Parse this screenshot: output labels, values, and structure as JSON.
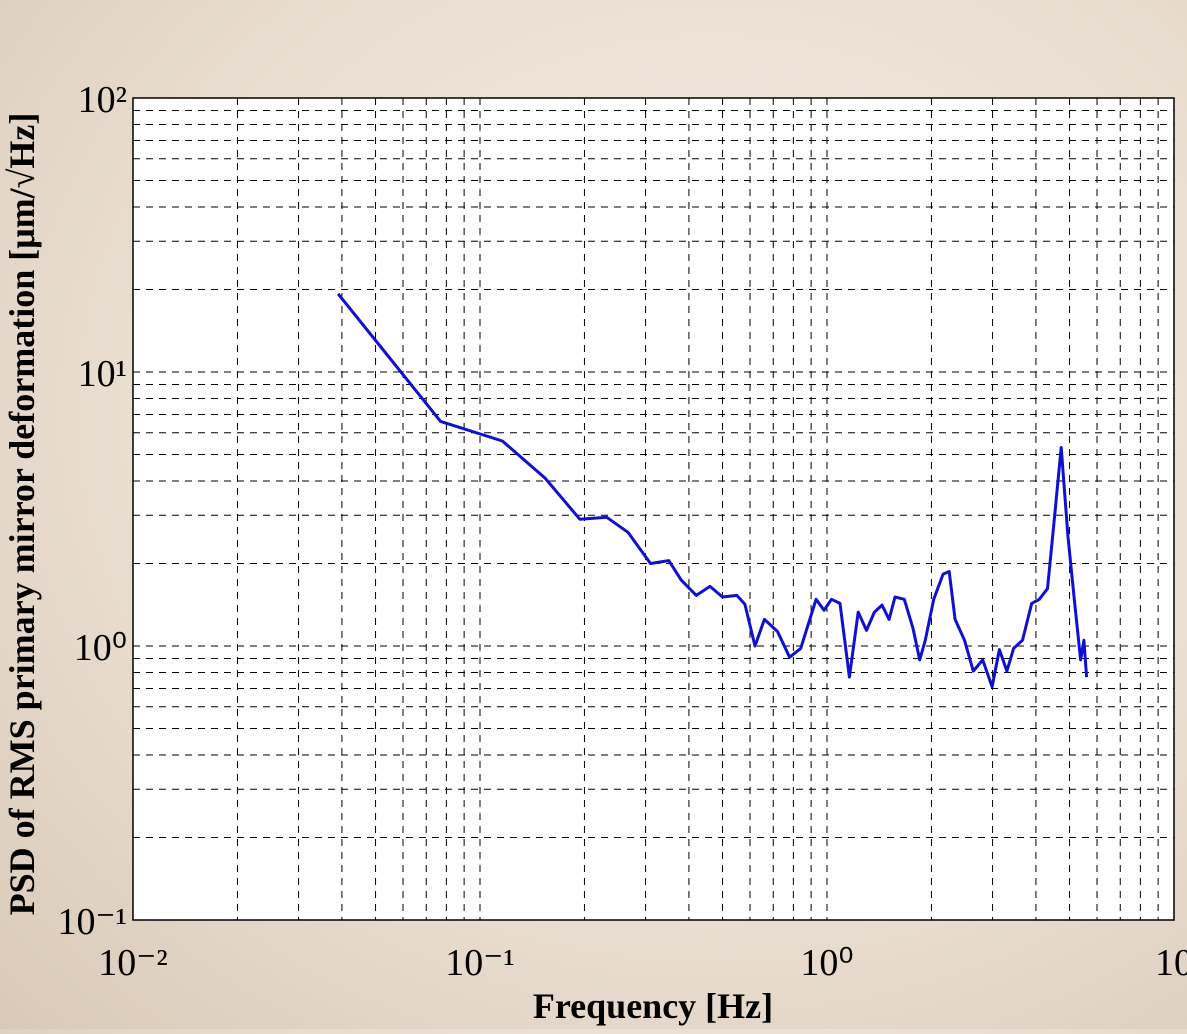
{
  "chart_data": {
    "type": "line",
    "xlabel": "Frequency [Hz]",
    "ylabel": "PSD of RMS primary mirror deformation [μm/√Hz]",
    "xscale": "log",
    "yscale": "log",
    "grid": true,
    "xlim": [
      0.01,
      10
    ],
    "ylim": [
      0.1,
      100
    ],
    "xticks": [
      {
        "value": 0.01,
        "label": "10⁻²"
      },
      {
        "value": 0.1,
        "label": "10⁻¹"
      },
      {
        "value": 1,
        "label": "10⁰"
      },
      10
    ],
    "yticks": [
      {
        "value": 0.1,
        "label": "10⁻¹"
      },
      {
        "value": 1,
        "label": "10⁰"
      },
      {
        "value": 10,
        "label": "10¹"
      },
      {
        "value": 100,
        "label": "10²"
      }
    ],
    "series": [
      {
        "color": "#1010d0",
        "x": [
          0.039,
          0.077,
          0.116,
          0.154,
          0.194,
          0.232,
          0.267,
          0.31,
          0.35,
          0.38,
          0.42,
          0.46,
          0.5,
          0.55,
          0.58,
          0.62,
          0.66,
          0.72,
          0.78,
          0.84,
          0.93,
          0.98,
          1.03,
          1.09,
          1.16,
          1.23,
          1.3,
          1.37,
          1.44,
          1.51,
          1.57,
          1.67,
          1.77,
          1.85,
          1.92,
          2.03,
          2.16,
          2.25,
          2.34,
          2.49,
          2.64,
          2.81,
          2.99,
          3.14,
          3.3,
          3.45,
          3.66,
          3.89,
          4.09,
          4.32,
          4.52,
          4.73,
          4.95,
          5.16,
          5.38,
          5.5,
          5.6
        ],
        "values": [
          19.3,
          6.6,
          5.6,
          4.1,
          2.9,
          2.95,
          2.6,
          2.0,
          2.05,
          1.74,
          1.53,
          1.65,
          1.51,
          1.53,
          1.42,
          1.0,
          1.25,
          1.13,
          0.91,
          0.98,
          1.48,
          1.35,
          1.48,
          1.43,
          0.77,
          1.33,
          1.14,
          1.33,
          1.41,
          1.25,
          1.51,
          1.48,
          1.16,
          0.89,
          1.05,
          1.48,
          1.83,
          1.87,
          1.25,
          1.05,
          0.81,
          0.89,
          0.71,
          0.97,
          0.81,
          0.98,
          1.05,
          1.43,
          1.48,
          1.62,
          2.9,
          5.3,
          2.5,
          1.48,
          0.89,
          1.05,
          0.77
        ]
      }
    ]
  }
}
